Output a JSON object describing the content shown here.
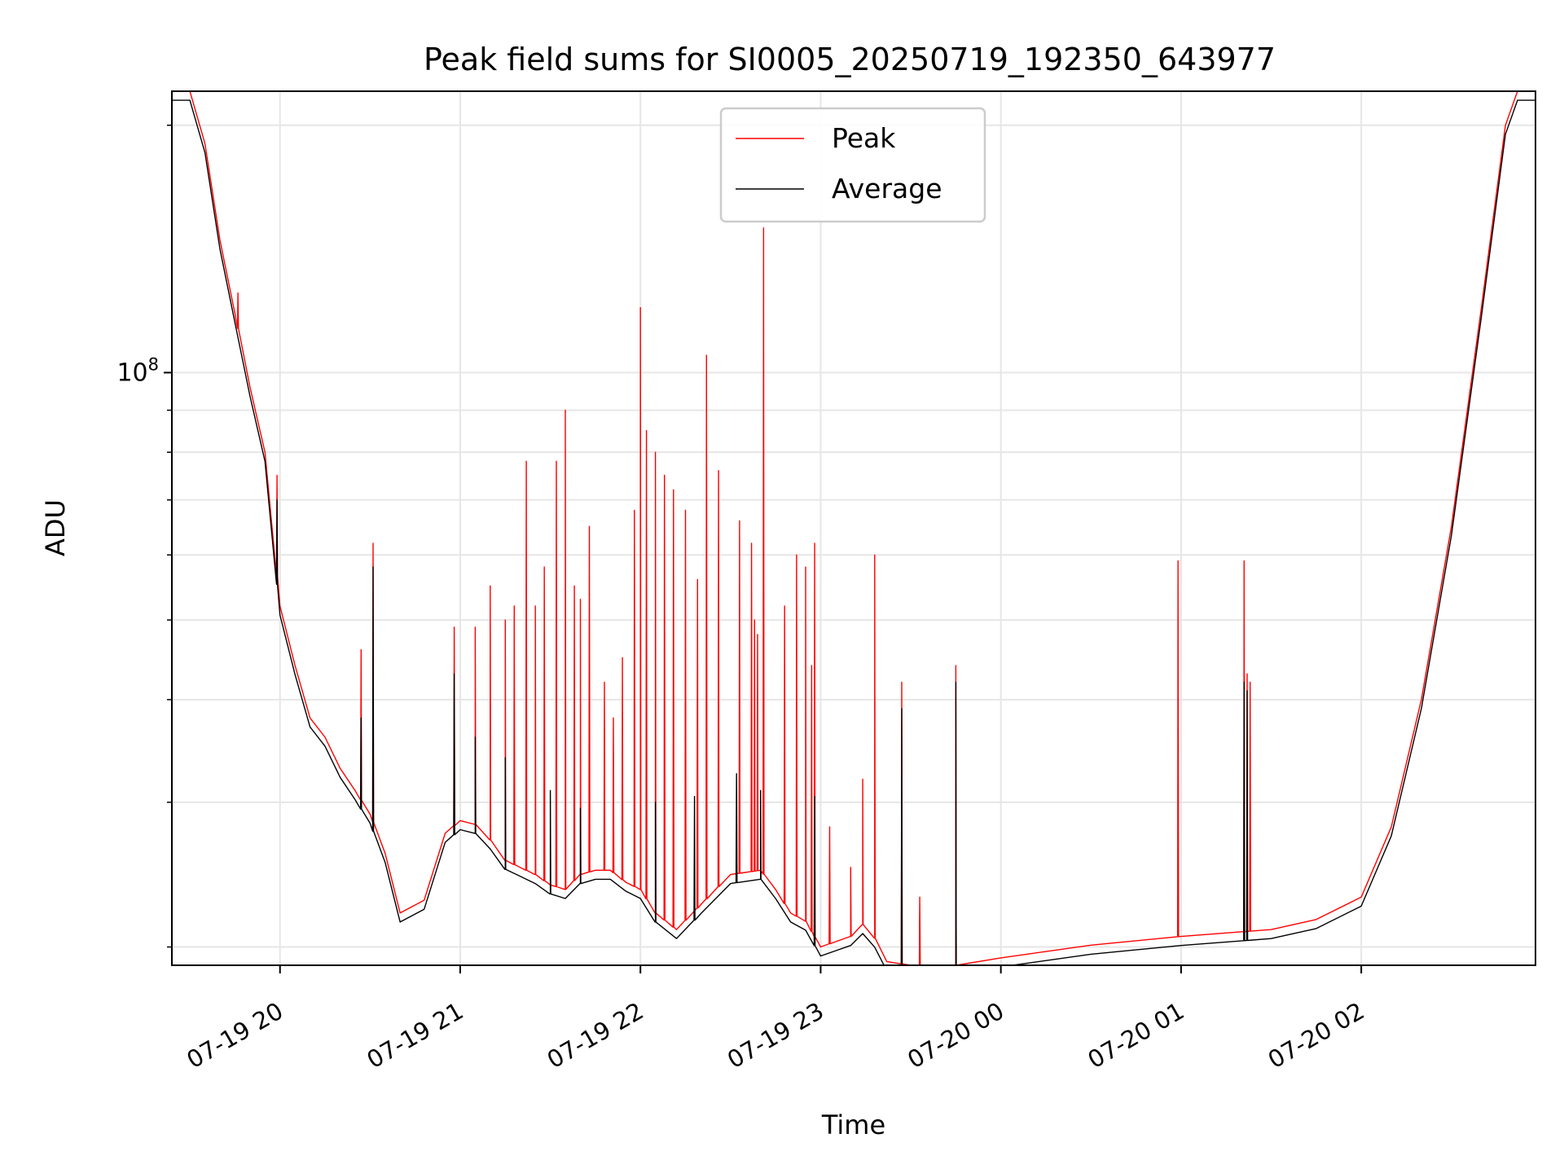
{
  "chart_data": {
    "type": "line",
    "title": "Peak field sums for SI0005_20250719_192350_643977",
    "xlabel": "Time",
    "ylabel": "ADU",
    "yscale": "log",
    "ylim": [
      19000000,
      220000000
    ],
    "xlim": [
      "2025-07-19 19:24",
      "2025-07-20 02:58"
    ],
    "grid": true,
    "legend_position": "top-center",
    "x_ticks": [
      {
        "x": "2025-07-19 20:00",
        "label": "07-19 20"
      },
      {
        "x": "2025-07-19 21:00",
        "label": "07-19 21"
      },
      {
        "x": "2025-07-19 22:00",
        "label": "07-19 22"
      },
      {
        "x": "2025-07-19 23:00",
        "label": "07-19 23"
      },
      {
        "x": "2025-07-20 00:00",
        "label": "07-20 00"
      },
      {
        "x": "2025-07-20 01:00",
        "label": "07-20 01"
      },
      {
        "x": "2025-07-20 02:00",
        "label": "07-20 02"
      }
    ],
    "y_major_ticks": [
      {
        "y": 100000000,
        "base": "10",
        "exp": "8"
      }
    ],
    "y_minor_ticks": [
      20000000,
      30000000,
      40000000,
      50000000,
      60000000,
      70000000,
      80000000,
      90000000,
      200000000
    ],
    "series": [
      {
        "name": "Peak",
        "color": "#ff0000"
      },
      {
        "name": "Average",
        "color": "#000000"
      }
    ],
    "baseline": [
      [
        "2025-07-19 19:24",
        220000000
      ],
      [
        "2025-07-19 19:30",
        220000000
      ],
      [
        "2025-07-19 19:35",
        190000000
      ],
      [
        "2025-07-19 19:40",
        145000000
      ],
      [
        "2025-07-19 19:45",
        118000000
      ],
      [
        "2025-07-19 19:50",
        96000000
      ],
      [
        "2025-07-19 19:55",
        80000000
      ],
      [
        "2025-07-19 20:00",
        52000000
      ],
      [
        "2025-07-19 20:05",
        44000000
      ],
      [
        "2025-07-19 20:10",
        38000000
      ],
      [
        "2025-07-19 20:15",
        36000000
      ],
      [
        "2025-07-19 20:20",
        33000000
      ],
      [
        "2025-07-19 20:25",
        31000000
      ],
      [
        "2025-07-19 20:30",
        29000000
      ],
      [
        "2025-07-19 20:35",
        26000000
      ],
      [
        "2025-07-19 20:40",
        22000000
      ],
      [
        "2025-07-19 20:48",
        22800000
      ],
      [
        "2025-07-19 20:55",
        27500000
      ],
      [
        "2025-07-19 21:00",
        28500000
      ],
      [
        "2025-07-19 21:05",
        28200000
      ],
      [
        "2025-07-19 21:10",
        27000000
      ],
      [
        "2025-07-19 21:15",
        25500000
      ],
      [
        "2025-07-19 21:25",
        24500000
      ],
      [
        "2025-07-19 21:30",
        23800000
      ],
      [
        "2025-07-19 21:35",
        23500000
      ],
      [
        "2025-07-19 21:40",
        24500000
      ],
      [
        "2025-07-19 21:45",
        24800000
      ],
      [
        "2025-07-19 21:50",
        24800000
      ],
      [
        "2025-07-19 21:55",
        24000000
      ],
      [
        "2025-07-19 22:00",
        23500000
      ],
      [
        "2025-07-19 22:05",
        22000000
      ],
      [
        "2025-07-19 22:12",
        21000000
      ],
      [
        "2025-07-19 22:20",
        22500000
      ],
      [
        "2025-07-19 22:30",
        24500000
      ],
      [
        "2025-07-19 22:40",
        24800000
      ],
      [
        "2025-07-19 22:45",
        23500000
      ],
      [
        "2025-07-19 22:50",
        22000000
      ],
      [
        "2025-07-19 22:55",
        21500000
      ],
      [
        "2025-07-19 23:00",
        20000000
      ],
      [
        "2025-07-19 23:05",
        20300000
      ],
      [
        "2025-07-19 23:10",
        20600000
      ],
      [
        "2025-07-19 23:14",
        21300000
      ],
      [
        "2025-07-19 23:18",
        20500000
      ],
      [
        "2025-07-19 23:22",
        19200000
      ],
      [
        "2025-07-19 23:30",
        19000000
      ],
      [
        "2025-07-19 23:45",
        19000000
      ],
      [
        "2025-07-20 00:00",
        19400000
      ],
      [
        "2025-07-20 00:30",
        20100000
      ],
      [
        "2025-07-20 01:00",
        20600000
      ],
      [
        "2025-07-20 01:30",
        21000000
      ],
      [
        "2025-07-20 01:45",
        21600000
      ],
      [
        "2025-07-20 02:00",
        23000000
      ],
      [
        "2025-07-20 02:10",
        28000000
      ],
      [
        "2025-07-20 02:20",
        40000000
      ],
      [
        "2025-07-20 02:30",
        65000000
      ],
      [
        "2025-07-20 02:40",
        120000000
      ],
      [
        "2025-07-20 02:48",
        200000000
      ],
      [
        "2025-07-20 02:52",
        220000000
      ],
      [
        "2025-07-20 02:58",
        220000000
      ]
    ],
    "peak_spikes": [
      [
        "2025-07-19 19:46",
        125000000
      ],
      [
        "2025-07-19 19:59",
        75000000
      ],
      [
        "2025-07-19 20:27",
        46000000
      ],
      [
        "2025-07-19 20:31",
        62000000
      ],
      [
        "2025-07-19 20:58",
        49000000
      ],
      [
        "2025-07-19 21:05",
        49000000
      ],
      [
        "2025-07-19 21:10",
        55000000
      ],
      [
        "2025-07-19 21:15",
        50000000
      ],
      [
        "2025-07-19 21:18",
        52000000
      ],
      [
        "2025-07-19 21:22",
        78000000
      ],
      [
        "2025-07-19 21:25",
        52000000
      ],
      [
        "2025-07-19 21:28",
        58000000
      ],
      [
        "2025-07-19 21:32",
        78000000
      ],
      [
        "2025-07-19 21:35",
        90000000
      ],
      [
        "2025-07-19 21:38",
        55000000
      ],
      [
        "2025-07-19 21:40",
        53000000
      ],
      [
        "2025-07-19 21:43",
        65000000
      ],
      [
        "2025-07-19 21:48",
        42000000
      ],
      [
        "2025-07-19 21:51",
        38000000
      ],
      [
        "2025-07-19 21:54",
        45000000
      ],
      [
        "2025-07-19 21:58",
        68000000
      ],
      [
        "2025-07-19 22:00",
        120000000
      ],
      [
        "2025-07-19 22:02",
        85000000
      ],
      [
        "2025-07-19 22:05",
        80000000
      ],
      [
        "2025-07-19 22:08",
        75000000
      ],
      [
        "2025-07-19 22:11",
        72000000
      ],
      [
        "2025-07-19 22:15",
        68000000
      ],
      [
        "2025-07-19 22:19",
        56000000
      ],
      [
        "2025-07-19 22:22",
        105000000
      ],
      [
        "2025-07-19 22:26",
        76000000
      ],
      [
        "2025-07-19 22:33",
        66000000
      ],
      [
        "2025-07-19 22:37",
        62000000
      ],
      [
        "2025-07-19 22:38",
        50000000
      ],
      [
        "2025-07-19 22:39",
        48000000
      ],
      [
        "2025-07-19 22:41",
        150000000
      ],
      [
        "2025-07-19 22:48",
        52000000
      ],
      [
        "2025-07-19 22:52",
        60000000
      ],
      [
        "2025-07-19 22:55",
        58000000
      ],
      [
        "2025-07-19 22:57",
        44000000
      ],
      [
        "2025-07-19 22:58",
        62000000
      ],
      [
        "2025-07-19 23:03",
        28000000
      ],
      [
        "2025-07-19 23:10",
        25000000
      ],
      [
        "2025-07-19 23:14",
        32000000
      ],
      [
        "2025-07-19 23:18",
        60000000
      ],
      [
        "2025-07-19 23:27",
        42000000
      ],
      [
        "2025-07-19 23:33",
        23000000
      ],
      [
        "2025-07-19 23:45",
        44000000
      ],
      [
        "2025-07-20 00:59",
        59000000
      ],
      [
        "2025-07-20 01:21",
        59000000
      ],
      [
        "2025-07-20 01:22",
        43000000
      ],
      [
        "2025-07-20 01:23",
        42000000
      ]
    ],
    "average_spikes": [
      [
        "2025-07-19 19:59",
        70000000
      ],
      [
        "2025-07-19 20:27",
        38000000
      ],
      [
        "2025-07-19 20:31",
        58000000
      ],
      [
        "2025-07-19 20:58",
        43000000
      ],
      [
        "2025-07-19 21:05",
        36000000
      ],
      [
        "2025-07-19 21:15",
        34000000
      ],
      [
        "2025-07-19 21:30",
        31000000
      ],
      [
        "2025-07-19 21:40",
        29500000
      ],
      [
        "2025-07-19 22:05",
        30000000
      ],
      [
        "2025-07-19 22:18",
        30500000
      ],
      [
        "2025-07-19 22:32",
        32500000
      ],
      [
        "2025-07-19 22:40",
        31000000
      ],
      [
        "2025-07-19 22:58",
        30500000
      ],
      [
        "2025-07-19 23:27",
        39000000
      ],
      [
        "2025-07-19 23:45",
        42000000
      ],
      [
        "2025-07-20 01:21",
        42000000
      ],
      [
        "2025-07-20 01:22",
        41000000
      ]
    ]
  }
}
